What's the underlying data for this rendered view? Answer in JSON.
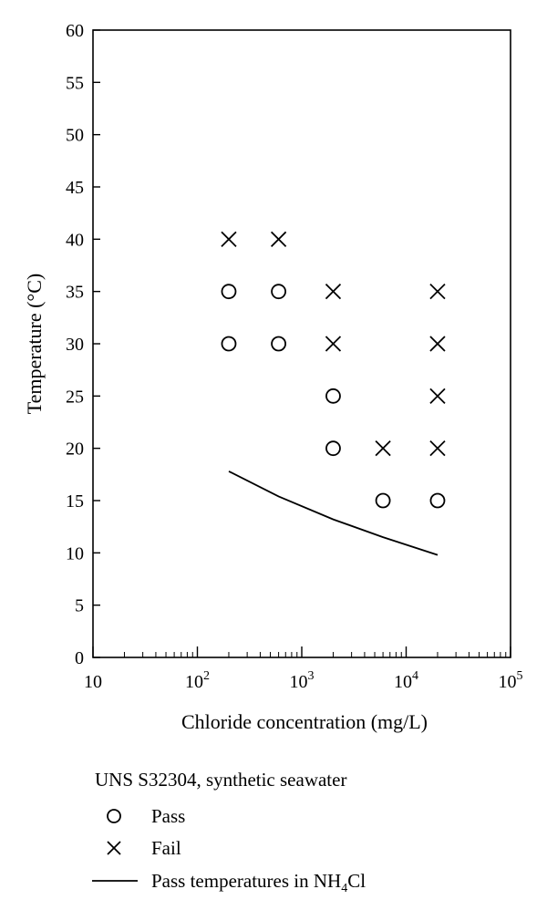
{
  "chart_data": {
    "type": "scatter",
    "title": "",
    "xlabel": "Chloride concentration (mg/L)",
    "ylabel": "Temperature (°C)",
    "x_scale": "log",
    "xlim": [
      10,
      100000
    ],
    "ylim": [
      0,
      60
    ],
    "grid": false,
    "x_ticks": [
      {
        "value": 10,
        "base": "10",
        "exp": ""
      },
      {
        "value": 100,
        "base": "10",
        "exp": "2"
      },
      {
        "value": 1000,
        "base": "10",
        "exp": "3"
      },
      {
        "value": 10000,
        "base": "10",
        "exp": "4"
      },
      {
        "value": 100000,
        "base": "10",
        "exp": "5"
      }
    ],
    "y_ticks": [
      "0",
      "5",
      "10",
      "15",
      "20",
      "25",
      "30",
      "35",
      "40",
      "45",
      "50",
      "55",
      "60"
    ],
    "legend": {
      "placement": "bottom",
      "heading": "UNS S32304, synthetic seawater",
      "pass_label": "Pass",
      "fail_label": "Fail",
      "line_label_prefix": "Pass temperatures in NH",
      "line_label_sub": "4",
      "line_label_suffix": "Cl"
    },
    "series": [
      {
        "marker": "circle",
        "points": [
          [
            200,
            30
          ],
          [
            200,
            35
          ],
          [
            600,
            30
          ],
          [
            600,
            35
          ],
          [
            2000,
            20
          ],
          [
            2000,
            25
          ],
          [
            6000,
            15
          ],
          [
            20000,
            15
          ]
        ]
      },
      {
        "marker": "x",
        "points": [
          [
            200,
            40
          ],
          [
            600,
            40
          ],
          [
            2000,
            30
          ],
          [
            2000,
            35
          ],
          [
            6000,
            20
          ],
          [
            20000,
            20
          ],
          [
            20000,
            25
          ],
          [
            20000,
            30
          ],
          [
            20000,
            35
          ]
        ]
      },
      {
        "marker": "line",
        "points": [
          [
            200,
            17.8
          ],
          [
            600,
            15.4
          ],
          [
            2000,
            13.2
          ],
          [
            6000,
            11.5
          ],
          [
            20000,
            9.8
          ]
        ]
      }
    ]
  }
}
